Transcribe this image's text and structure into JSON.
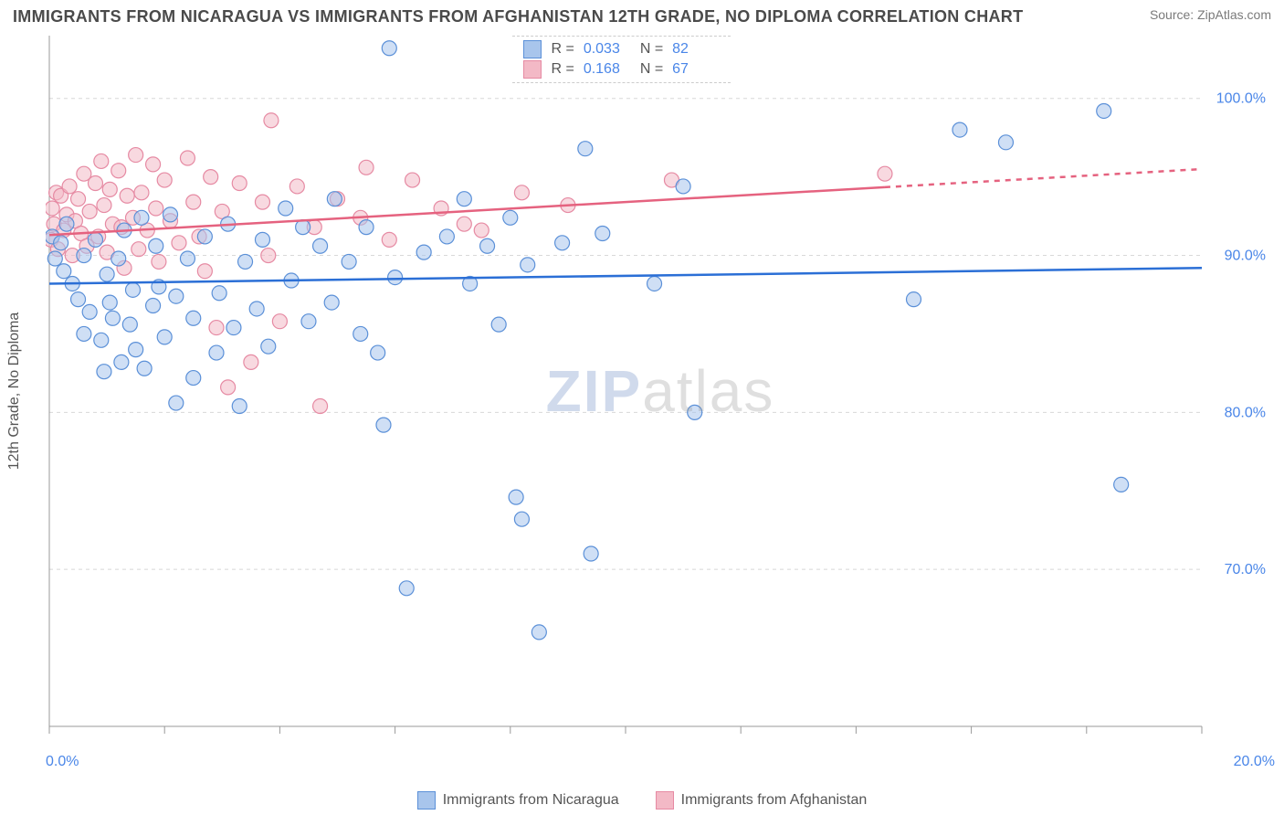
{
  "title": "IMMIGRANTS FROM NICARAGUA VS IMMIGRANTS FROM AFGHANISTAN 12TH GRADE, NO DIPLOMA CORRELATION CHART",
  "source": "Source: ZipAtlas.com",
  "y_axis_label": "12th Grade, No Diploma",
  "watermark_a": "ZIP",
  "watermark_b": "atlas",
  "x_axis": {
    "min_label": "0.0%",
    "max_label": "20.0%"
  },
  "series1": {
    "name": "Immigrants from Nicaragua",
    "color": "#a8c5ec",
    "stroke": "#5b90d8"
  },
  "series2": {
    "name": "Immigrants from Afghanistan",
    "color": "#f3b9c6",
    "stroke": "#e68aa3"
  },
  "corr_legend": {
    "rows": [
      {
        "swatch": "s1",
        "r_key": "R =",
        "r": "0.033",
        "n_key": "N =",
        "n": "82"
      },
      {
        "swatch": "s2",
        "r_key": "R =",
        "r": "0.168",
        "n_key": "N =",
        "n": "67"
      }
    ]
  },
  "chart": {
    "type": "scatter",
    "plot_x_min": 0,
    "plot_x_max": 20,
    "plot_y_min": 60,
    "plot_y_max": 104,
    "y_ticks": [
      70,
      80,
      90,
      100
    ],
    "y_tick_labels": [
      "70.0%",
      "80.0%",
      "90.0%",
      "100.0%"
    ],
    "x_ticks_minor": [
      0,
      2,
      4,
      6,
      8,
      10,
      12,
      14,
      16,
      18,
      20
    ],
    "grid_color": "#d8d8d8",
    "grid_dashed": true,
    "background": "#ffffff",
    "marker_radius": 8,
    "marker_fill_alpha": 0.55,
    "line_width": 2.5,
    "trend1": {
      "y_start": 88.2,
      "y_end": 89.2,
      "color": "#2b6fd6",
      "solid_to_x": 20
    },
    "trend2": {
      "y_start": 91.3,
      "y_end": 95.5,
      "color": "#e5627f",
      "solid_to_x": 14.5
    },
    "series1_points": [
      [
        0.05,
        91.2
      ],
      [
        0.1,
        89.8
      ],
      [
        0.2,
        90.8
      ],
      [
        0.25,
        89.0
      ],
      [
        0.3,
        92.0
      ],
      [
        0.4,
        88.2
      ],
      [
        0.5,
        87.2
      ],
      [
        0.6,
        90.0
      ],
      [
        0.6,
        85.0
      ],
      [
        0.7,
        86.4
      ],
      [
        0.8,
        91.0
      ],
      [
        0.9,
        84.6
      ],
      [
        0.95,
        82.6
      ],
      [
        1.0,
        88.8
      ],
      [
        1.05,
        87.0
      ],
      [
        1.1,
        86.0
      ],
      [
        1.2,
        89.8
      ],
      [
        1.25,
        83.2
      ],
      [
        1.3,
        91.6
      ],
      [
        1.4,
        85.6
      ],
      [
        1.45,
        87.8
      ],
      [
        1.5,
        84.0
      ],
      [
        1.6,
        92.4
      ],
      [
        1.65,
        82.8
      ],
      [
        1.8,
        86.8
      ],
      [
        1.85,
        90.6
      ],
      [
        1.9,
        88.0
      ],
      [
        2.0,
        84.8
      ],
      [
        2.1,
        92.6
      ],
      [
        2.2,
        87.4
      ],
      [
        2.2,
        80.6
      ],
      [
        2.4,
        89.8
      ],
      [
        2.5,
        86.0
      ],
      [
        2.5,
        82.2
      ],
      [
        2.7,
        91.2
      ],
      [
        2.9,
        83.8
      ],
      [
        2.95,
        87.6
      ],
      [
        3.1,
        92.0
      ],
      [
        3.2,
        85.4
      ],
      [
        3.3,
        80.4
      ],
      [
        3.4,
        89.6
      ],
      [
        3.6,
        86.6
      ],
      [
        3.7,
        91.0
      ],
      [
        3.8,
        84.2
      ],
      [
        4.1,
        93.0
      ],
      [
        4.2,
        88.4
      ],
      [
        4.4,
        91.8
      ],
      [
        4.5,
        85.8
      ],
      [
        4.7,
        90.6
      ],
      [
        4.9,
        87.0
      ],
      [
        4.95,
        93.6
      ],
      [
        5.2,
        89.6
      ],
      [
        5.4,
        85.0
      ],
      [
        5.5,
        91.8
      ],
      [
        5.7,
        83.8
      ],
      [
        5.8,
        79.2
      ],
      [
        5.9,
        103.2
      ],
      [
        6.0,
        88.6
      ],
      [
        6.2,
        68.8
      ],
      [
        6.5,
        90.2
      ],
      [
        6.9,
        91.2
      ],
      [
        7.2,
        93.6
      ],
      [
        7.3,
        88.2
      ],
      [
        7.6,
        90.6
      ],
      [
        7.8,
        85.6
      ],
      [
        8.0,
        92.4
      ],
      [
        8.1,
        74.6
      ],
      [
        8.2,
        73.2
      ],
      [
        8.3,
        89.4
      ],
      [
        8.5,
        66.0
      ],
      [
        8.9,
        90.8
      ],
      [
        9.3,
        96.8
      ],
      [
        9.4,
        71.0
      ],
      [
        9.6,
        91.4
      ],
      [
        10.5,
        88.2
      ],
      [
        11.0,
        94.4
      ],
      [
        11.2,
        80.0
      ],
      [
        15.0,
        87.2
      ],
      [
        15.8,
        98.0
      ],
      [
        16.6,
        97.2
      ],
      [
        18.3,
        99.2
      ],
      [
        18.6,
        75.4
      ]
    ],
    "series2_points": [
      [
        0.03,
        91.0
      ],
      [
        0.05,
        93.0
      ],
      [
        0.08,
        92.0
      ],
      [
        0.12,
        94.0
      ],
      [
        0.15,
        90.4
      ],
      [
        0.2,
        93.8
      ],
      [
        0.25,
        91.6
      ],
      [
        0.3,
        92.6
      ],
      [
        0.35,
        94.4
      ],
      [
        0.4,
        90.0
      ],
      [
        0.45,
        92.2
      ],
      [
        0.5,
        93.6
      ],
      [
        0.55,
        91.4
      ],
      [
        0.6,
        95.2
      ],
      [
        0.65,
        90.6
      ],
      [
        0.7,
        92.8
      ],
      [
        0.8,
        94.6
      ],
      [
        0.85,
        91.2
      ],
      [
        0.9,
        96.0
      ],
      [
        0.95,
        93.2
      ],
      [
        1.0,
        90.2
      ],
      [
        1.05,
        94.2
      ],
      [
        1.1,
        92.0
      ],
      [
        1.2,
        95.4
      ],
      [
        1.25,
        91.8
      ],
      [
        1.3,
        89.2
      ],
      [
        1.35,
        93.8
      ],
      [
        1.45,
        92.4
      ],
      [
        1.5,
        96.4
      ],
      [
        1.55,
        90.4
      ],
      [
        1.6,
        94.0
      ],
      [
        1.7,
        91.6
      ],
      [
        1.8,
        95.8
      ],
      [
        1.85,
        93.0
      ],
      [
        1.9,
        89.6
      ],
      [
        2.0,
        94.8
      ],
      [
        2.1,
        92.2
      ],
      [
        2.25,
        90.8
      ],
      [
        2.4,
        96.2
      ],
      [
        2.5,
        93.4
      ],
      [
        2.6,
        91.2
      ],
      [
        2.7,
        89.0
      ],
      [
        2.8,
        95.0
      ],
      [
        2.9,
        85.4
      ],
      [
        3.0,
        92.8
      ],
      [
        3.1,
        81.6
      ],
      [
        3.3,
        94.6
      ],
      [
        3.5,
        83.2
      ],
      [
        3.7,
        93.4
      ],
      [
        3.8,
        90.0
      ],
      [
        3.85,
        98.6
      ],
      [
        4.0,
        85.8
      ],
      [
        4.3,
        94.4
      ],
      [
        4.6,
        91.8
      ],
      [
        4.7,
        80.4
      ],
      [
        5.0,
        93.6
      ],
      [
        5.4,
        92.4
      ],
      [
        5.5,
        95.6
      ],
      [
        5.9,
        91.0
      ],
      [
        6.3,
        94.8
      ],
      [
        6.8,
        93.0
      ],
      [
        7.2,
        92.0
      ],
      [
        7.5,
        91.6
      ],
      [
        8.2,
        94.0
      ],
      [
        9.0,
        93.2
      ],
      [
        10.8,
        94.8
      ],
      [
        14.5,
        95.2
      ]
    ]
  }
}
